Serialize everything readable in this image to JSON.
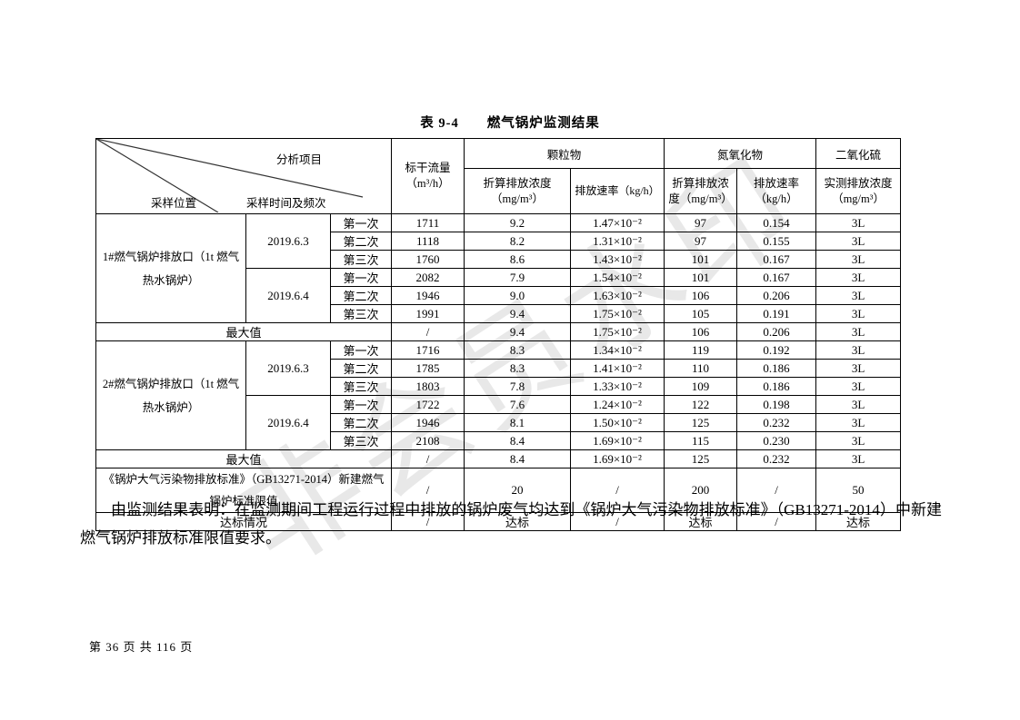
{
  "doc": {
    "title": "表 9-4　　燃气锅炉监测结果",
    "paragraph": "由监测结果表明：在监测期间工程运行过程中排放的锅炉废气均达到《锅炉大气污染物排放标准》（GB13271-2014）中新建燃气锅炉排放标准限值要求。",
    "footer": "第 36 页 共 116 页"
  },
  "watermark": {
    "text": "非会员水印",
    "color": "#d6d6d6"
  },
  "table": {
    "header": {
      "diag_top": "分析项目",
      "diag_bottom_left": "采样位置",
      "diag_bottom_right": "采样时间及频次",
      "flow": "标干流量\n（m³/h）",
      "pm": "颗粒物",
      "pm_conc": "折算排放浓度\n（mg/m³）",
      "pm_rate": "排放速率（kg/h）",
      "nox": "氮氧化物",
      "nox_conc": "折算排放浓\n度（mg/m³）",
      "nox_rate": "排放速率\n（kg/h）",
      "so2": "二氧化硫",
      "so2_conc": "实测排放浓度\n（mg/m³）"
    },
    "body_rows": [
      {
        "h": 17,
        "cells": [
          {
            "t": "1#燃气锅炉排放口（1t 燃气热水锅炉）",
            "rs": 6,
            "cls": "loc",
            "name": "sampling-location-1"
          },
          {
            "t": "2019.6.3",
            "rs": 3,
            "name": "sampling-date"
          },
          {
            "t": "第一次"
          },
          {
            "t": "1711"
          },
          {
            "t": "9.2"
          },
          {
            "t": "1.47×10⁻²"
          },
          {
            "t": "97"
          },
          {
            "t": "0.154"
          },
          {
            "t": "3L"
          }
        ]
      },
      {
        "h": 17,
        "cells": [
          {
            "t": "第二次"
          },
          {
            "t": "1118"
          },
          {
            "t": "8.2"
          },
          {
            "t": "1.31×10⁻²"
          },
          {
            "t": "97"
          },
          {
            "t": "0.155"
          },
          {
            "t": "3L"
          }
        ]
      },
      {
        "h": 17,
        "cells": [
          {
            "t": "第三次"
          },
          {
            "t": "1760"
          },
          {
            "t": "8.6"
          },
          {
            "t": "1.43×10⁻²"
          },
          {
            "t": "101"
          },
          {
            "t": "0.167"
          },
          {
            "t": "3L"
          }
        ]
      },
      {
        "h": 17,
        "cells": [
          {
            "t": "2019.6.4",
            "rs": 3,
            "name": "sampling-date"
          },
          {
            "t": "第一次"
          },
          {
            "t": "2082"
          },
          {
            "t": "7.9"
          },
          {
            "t": "1.54×10⁻²"
          },
          {
            "t": "101"
          },
          {
            "t": "0.167"
          },
          {
            "t": "3L"
          }
        ]
      },
      {
        "h": 17,
        "cells": [
          {
            "t": "第二次"
          },
          {
            "t": "1946"
          },
          {
            "t": "9.0"
          },
          {
            "t": "1.63×10⁻²"
          },
          {
            "t": "106"
          },
          {
            "t": "0.206"
          },
          {
            "t": "3L"
          }
        ]
      },
      {
        "h": 17,
        "cells": [
          {
            "t": "第三次"
          },
          {
            "t": "1991"
          },
          {
            "t": "9.4"
          },
          {
            "t": "1.75×10⁻²"
          },
          {
            "t": "105"
          },
          {
            "t": "0.191"
          },
          {
            "t": "3L"
          }
        ]
      },
      {
        "h": 17,
        "cells": [
          {
            "t": "最大值",
            "cs": 3,
            "name": "max-value-label"
          },
          {
            "t": "/"
          },
          {
            "t": "9.4"
          },
          {
            "t": "1.75×10⁻²"
          },
          {
            "t": "106"
          },
          {
            "t": "0.206"
          },
          {
            "t": "3L"
          }
        ]
      },
      {
        "h": 17,
        "cells": [
          {
            "t": "2#燃气锅炉排放口（1t 燃气热水锅炉）",
            "rs": 6,
            "cls": "loc",
            "name": "sampling-location-2"
          },
          {
            "t": "2019.6.3",
            "rs": 3,
            "name": "sampling-date"
          },
          {
            "t": "第一次"
          },
          {
            "t": "1716"
          },
          {
            "t": "8.3"
          },
          {
            "t": "1.34×10⁻²"
          },
          {
            "t": "119"
          },
          {
            "t": "0.192"
          },
          {
            "t": "3L"
          }
        ]
      },
      {
        "h": 17,
        "cells": [
          {
            "t": "第二次"
          },
          {
            "t": "1785"
          },
          {
            "t": "8.3"
          },
          {
            "t": "1.41×10⁻²"
          },
          {
            "t": "110"
          },
          {
            "t": "0.186"
          },
          {
            "t": "3L"
          }
        ]
      },
      {
        "h": 17,
        "cells": [
          {
            "t": "第三次"
          },
          {
            "t": "1803"
          },
          {
            "t": "7.8"
          },
          {
            "t": "1.33×10⁻²"
          },
          {
            "t": "109"
          },
          {
            "t": "0.186"
          },
          {
            "t": "3L"
          }
        ]
      },
      {
        "h": 17,
        "cells": [
          {
            "t": "2019.6.4",
            "rs": 3,
            "name": "sampling-date"
          },
          {
            "t": "第一次"
          },
          {
            "t": "1722"
          },
          {
            "t": "7.6"
          },
          {
            "t": "1.24×10⁻²"
          },
          {
            "t": "122"
          },
          {
            "t": "0.198"
          },
          {
            "t": "3L"
          }
        ]
      },
      {
        "h": 17,
        "cells": [
          {
            "t": "第二次"
          },
          {
            "t": "1946"
          },
          {
            "t": "8.1"
          },
          {
            "t": "1.50×10⁻²"
          },
          {
            "t": "125"
          },
          {
            "t": "0.232"
          },
          {
            "t": "3L"
          }
        ]
      },
      {
        "h": 17,
        "cells": [
          {
            "t": "第三次"
          },
          {
            "t": "2108"
          },
          {
            "t": "8.4"
          },
          {
            "t": "1.69×10⁻²"
          },
          {
            "t": "115"
          },
          {
            "t": "0.230"
          },
          {
            "t": "3L"
          }
        ]
      },
      {
        "h": 17,
        "cells": [
          {
            "t": "最大值",
            "cs": 3,
            "name": "max-value-label"
          },
          {
            "t": "/"
          },
          {
            "t": "8.4"
          },
          {
            "t": "1.69×10⁻²"
          },
          {
            "t": "125"
          },
          {
            "t": "0.232"
          },
          {
            "t": "3L"
          }
        ]
      },
      {
        "h": 43,
        "cells": [
          {
            "t": "《锅炉大气污染物排放标准》（GB13271-2014）新建燃气锅炉标准限值",
            "cs": 3,
            "cls": "std",
            "name": "standard-limit-label"
          },
          {
            "t": "/"
          },
          {
            "t": "20"
          },
          {
            "t": "/"
          },
          {
            "t": "200"
          },
          {
            "t": "/"
          },
          {
            "t": "50"
          }
        ]
      },
      {
        "h": 17,
        "cells": [
          {
            "t": "达标情况",
            "cs": 3,
            "name": "compliance-label"
          },
          {
            "t": "/"
          },
          {
            "t": "达标"
          },
          {
            "t": "/"
          },
          {
            "t": "达标"
          },
          {
            "t": "/"
          },
          {
            "t": "达标"
          }
        ]
      }
    ]
  }
}
